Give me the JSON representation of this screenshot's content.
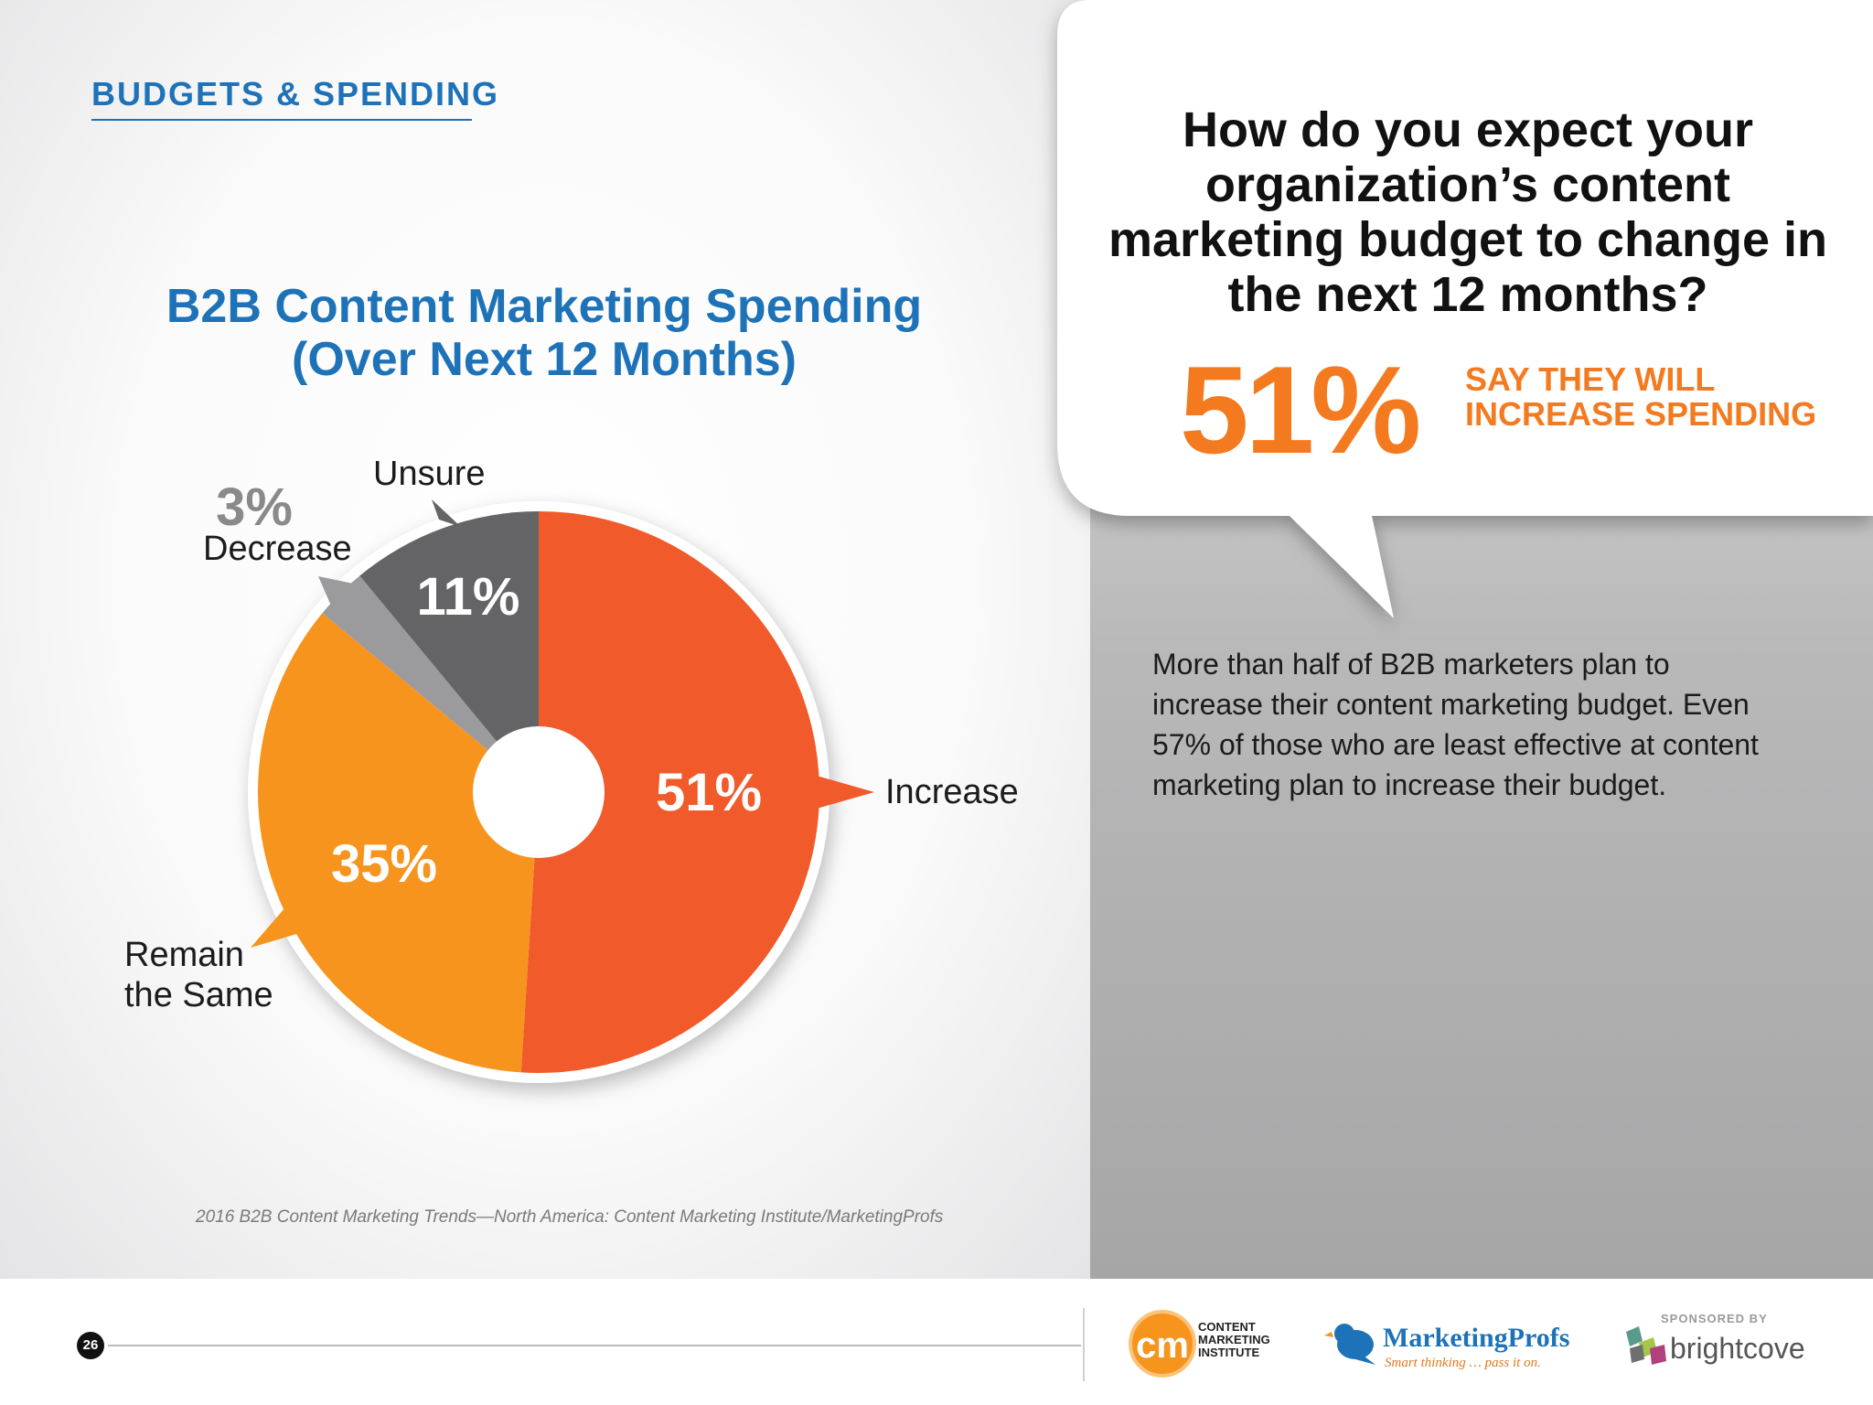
{
  "header": {
    "section_label": "BUDGETS & SPENDING"
  },
  "chart_data": {
    "type": "pie",
    "title": "B2B Content Marketing Spending (Over Next 12 Months)",
    "title_lines": [
      "B2B Content Marketing Spending",
      "(Over Next 12 Months)"
    ],
    "slices": [
      {
        "label": "Increase",
        "value": 51,
        "value_label": "51%",
        "color": "#f15a2b"
      },
      {
        "label": "Remain the Same",
        "label_lines": [
          "Remain",
          "the Same"
        ],
        "value": 35,
        "value_label": "35%",
        "color": "#f7941e"
      },
      {
        "label": "Decrease",
        "value": 3,
        "value_label": "3%",
        "color": "#9b9b9d"
      },
      {
        "label": "Unsure",
        "value": 11,
        "value_label": "11%",
        "color": "#646466"
      }
    ],
    "donut_hole": true,
    "source": "2016 B2B Content Marketing Trends—North America: Content Marketing Institute/MarketingProfs"
  },
  "callout": {
    "question": "How do you expect your organization’s content marketing budget to change in the next 12 months?",
    "stat_value": "51%",
    "stat_label_line1": "SAY THEY WILL",
    "stat_label_line2": "INCREASE SPENDING",
    "body": "More than half of B2B marketers plan to increase their content marketing budget. Even 57% of those who are least effective at content marketing plan to increase their budget."
  },
  "footer": {
    "page_number": "26",
    "cmi_mark": "cm",
    "cmi_line1": "CONTENT",
    "cmi_line2": "MARKETING",
    "cmi_line3": "INSTITUTE",
    "mp_name": "MarketingProfs",
    "mp_tagline": "Smart thinking … pass it on.",
    "sponsored_by": "SPONSORED BY",
    "sponsor_name": "brightcove"
  },
  "colors": {
    "accent_blue": "#1d72b8",
    "accent_orange": "#f47a20"
  }
}
